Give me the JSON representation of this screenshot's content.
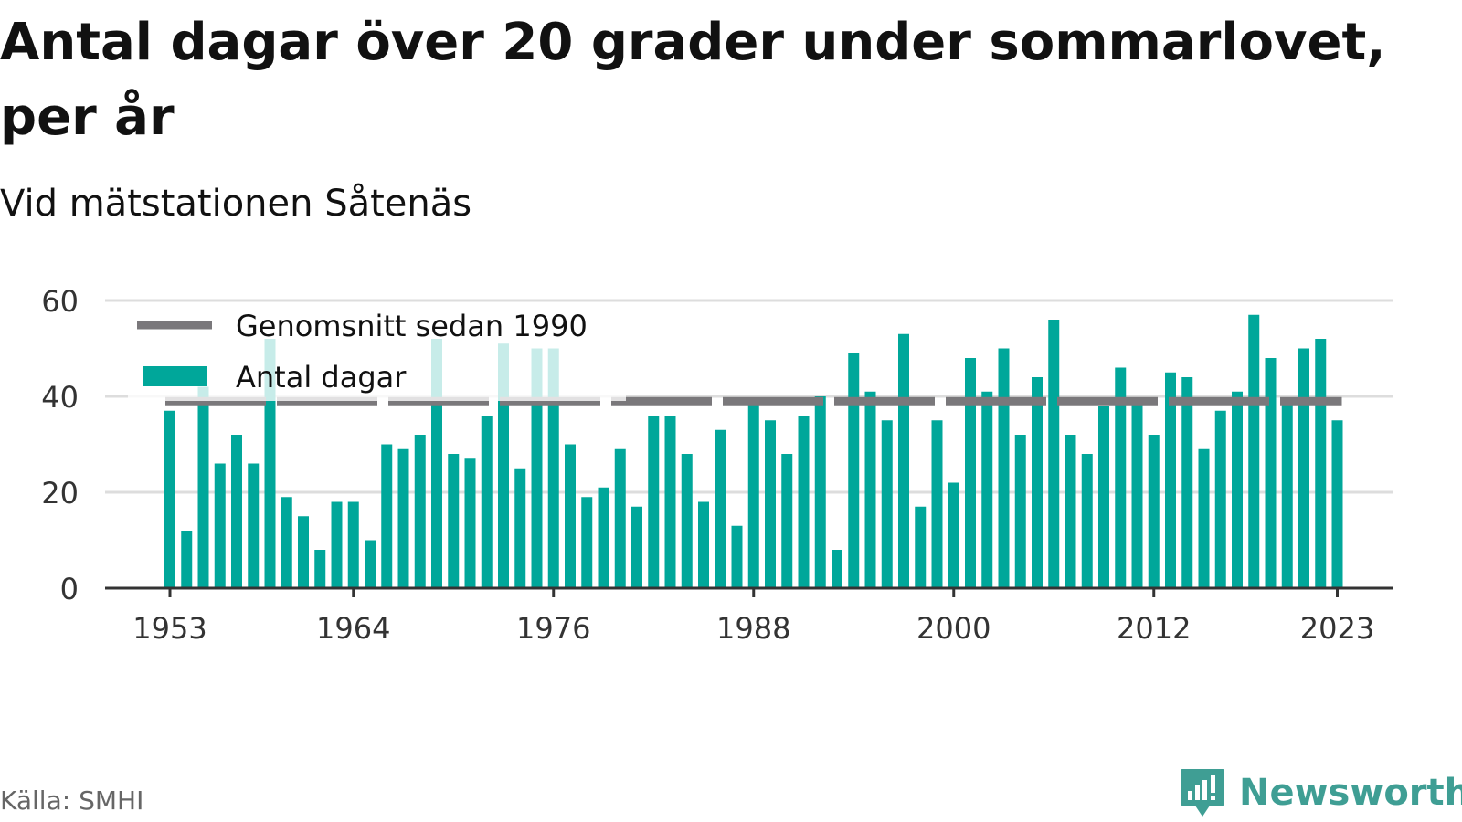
{
  "header": {
    "title": "Antal dagar över 20 grader under sommarlovet, per år",
    "subtitle": "Vid mätstationen Såtenäs"
  },
  "footer": {
    "source": "Källa: SMHI",
    "brand": "Newsworthy",
    "brand_icon": "bar-chart-badge-icon"
  },
  "colors": {
    "bar": "#00a79a",
    "average": "#7a787b",
    "grid": "#dddddd",
    "axis": "#333333",
    "brand": "#3f9e94"
  },
  "chart_data": {
    "type": "bar",
    "x": [
      1953,
      1954,
      1955,
      1956,
      1957,
      1958,
      1959,
      1960,
      1961,
      1962,
      1963,
      1964,
      1965,
      1966,
      1967,
      1968,
      1969,
      1970,
      1971,
      1972,
      1973,
      1974,
      1975,
      1976,
      1977,
      1978,
      1979,
      1980,
      1981,
      1982,
      1983,
      1984,
      1985,
      1986,
      1987,
      1988,
      1989,
      1990,
      1991,
      1992,
      1993,
      1994,
      1995,
      1996,
      1997,
      1998,
      1999,
      2000,
      2001,
      2002,
      2003,
      2004,
      2005,
      2006,
      2007,
      2008,
      2009,
      2010,
      2011,
      2012,
      2013,
      2014,
      2015,
      2016,
      2017,
      2018,
      2019,
      2020,
      2021,
      2022,
      2023
    ],
    "series": [
      {
        "name": "Antal dagar",
        "values": [
          37,
          12,
          42,
          26,
          32,
          26,
          52,
          19,
          15,
          8,
          18,
          18,
          10,
          30,
          29,
          32,
          52,
          28,
          27,
          36,
          51,
          25,
          50,
          50,
          30,
          19,
          21,
          29,
          17,
          36,
          36,
          28,
          18,
          33,
          13,
          39,
          35,
          28,
          36,
          40,
          8,
          49,
          41,
          35,
          53,
          17,
          35,
          22,
          48,
          41,
          50,
          32,
          44,
          56,
          32,
          28,
          38,
          46,
          39,
          32,
          45,
          44,
          29,
          37,
          41,
          57,
          48,
          39,
          50,
          52,
          35
        ]
      },
      {
        "name": "Genomsnitt sedan 1990",
        "value": 39
      }
    ],
    "xticks": [
      "1953",
      "1964",
      "1976",
      "1988",
      "2000",
      "2012",
      "2023"
    ],
    "yticks": [
      "0",
      "20",
      "40",
      "60"
    ],
    "ylim": [
      0,
      60
    ],
    "xlim": [
      1953,
      2023
    ],
    "grid": true,
    "legend": "top-left",
    "xlabel": "",
    "ylabel": ""
  }
}
